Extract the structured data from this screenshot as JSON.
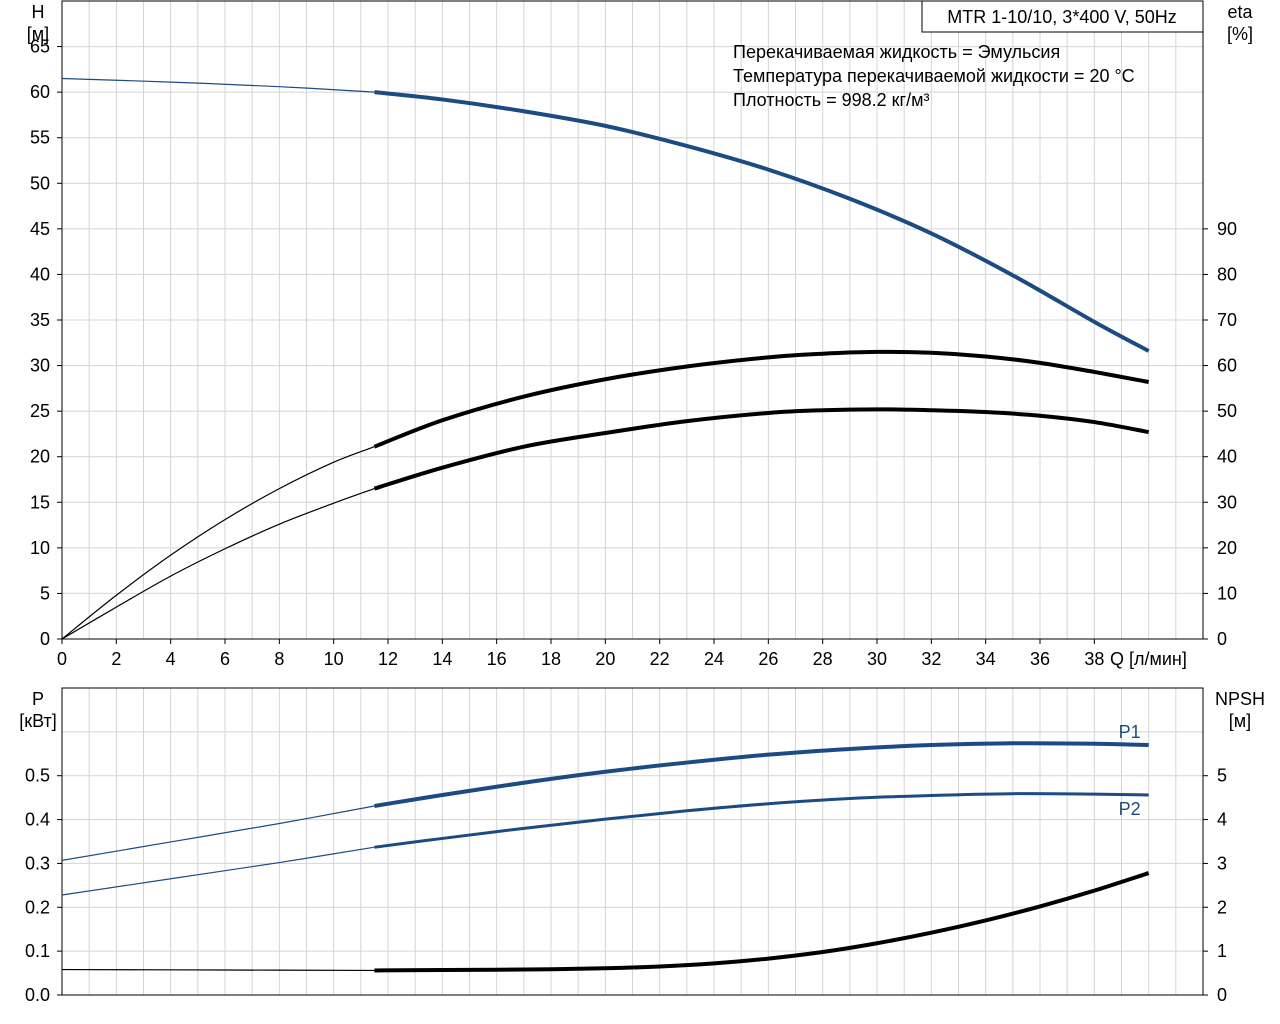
{
  "chart_data": [
    {
      "type": "line",
      "name": "performance",
      "title": "MTR 1-10/10, 3*400 V, 50Hz",
      "notes": [
        "Перекачиваемая жидкость = Эмульсия",
        "Температура перекачиваемой жидкости = 20 °C",
        "Плотность = 998.2 кг/м³"
      ],
      "xlabel": "Q [л/мин]",
      "ylabel_left": [
        "H",
        "[м]"
      ],
      "ylabel_right": [
        "eta",
        "[%]"
      ],
      "xlim": [
        0,
        42
      ],
      "ylim_left": [
        0,
        70
      ],
      "ylim_right": [
        0,
        140
      ],
      "x_ticks": [
        0,
        2,
        4,
        6,
        8,
        10,
        12,
        14,
        16,
        18,
        20,
        22,
        24,
        26,
        28,
        30,
        32,
        34,
        36,
        38
      ],
      "y_ticks_left": [
        0,
        5,
        10,
        15,
        20,
        25,
        30,
        35,
        40,
        45,
        50,
        55,
        60,
        65
      ],
      "y_ticks_right": [
        0,
        10,
        20,
        30,
        40,
        50,
        60,
        70,
        80,
        90
      ],
      "grid": true,
      "series": [
        {
          "axis": "left",
          "color": "#1b4b82",
          "x": [
            0,
            4,
            8,
            11.5,
            14,
            17,
            20,
            23,
            26,
            29,
            32,
            35,
            38,
            40
          ],
          "y": [
            61.5,
            61.1,
            60.6,
            60.0,
            59.2,
            57.9,
            56.3,
            54.1,
            51.5,
            48.3,
            44.5,
            39.9,
            34.8,
            31.6
          ]
        },
        {
          "axis": "right",
          "color": "#000000",
          "x": [
            0,
            2,
            4,
            6,
            8,
            10,
            11.5,
            14,
            17,
            20,
            23,
            26,
            28,
            30,
            32,
            34,
            36,
            38,
            40
          ],
          "y": [
            0,
            9.6,
            18.4,
            26.2,
            33.0,
            38.8,
            42.2,
            48.0,
            53.2,
            57.0,
            59.8,
            61.8,
            62.6,
            63.0,
            62.8,
            62.0,
            60.6,
            58.6,
            56.4
          ]
        },
        {
          "axis": "right",
          "color": "#000000",
          "x": [
            0,
            2,
            4,
            6,
            8,
            10,
            11.5,
            14,
            17,
            20,
            23,
            26,
            28,
            30,
            32,
            34,
            36,
            38,
            40
          ],
          "y": [
            0,
            7.0,
            13.8,
            19.8,
            25.2,
            29.8,
            33.0,
            37.6,
            42.2,
            45.2,
            47.8,
            49.6,
            50.2,
            50.4,
            50.2,
            49.8,
            49.0,
            47.6,
            45.4
          ]
        }
      ]
    },
    {
      "type": "line",
      "name": "power-npsh",
      "ylabel_left": [
        "P",
        "[кВт]"
      ],
      "ylabel_right": [
        "NPSH",
        "[м]"
      ],
      "xlim": [
        0,
        42
      ],
      "ylim_left": [
        0,
        0.7
      ],
      "ylim_right": [
        0,
        7
      ],
      "y_ticks_left": [
        0.0,
        0.1,
        0.2,
        0.3,
        0.4,
        0.5
      ],
      "y_ticks_right": [
        0,
        1,
        2,
        3,
        4,
        5
      ],
      "grid": true,
      "series": [
        {
          "name": "P1",
          "axis": "left",
          "color": "#1b4b82",
          "x": [
            0,
            4,
            8,
            11.5,
            14,
            17,
            20,
            23,
            26,
            29,
            32,
            35,
            38,
            40
          ],
          "y": [
            0.307,
            0.349,
            0.391,
            0.431,
            0.456,
            0.484,
            0.509,
            0.53,
            0.548,
            0.561,
            0.57,
            0.574,
            0.573,
            0.57
          ]
        },
        {
          "name": "P2",
          "axis": "left",
          "color": "#1b4b82",
          "x": [
            0,
            4,
            8,
            11.5,
            14,
            17,
            20,
            23,
            26,
            29,
            32,
            35,
            38,
            40
          ],
          "y": [
            0.228,
            0.265,
            0.302,
            0.337,
            0.357,
            0.38,
            0.401,
            0.42,
            0.436,
            0.448,
            0.455,
            0.459,
            0.458,
            0.456
          ]
        },
        {
          "name": "",
          "axis": "right",
          "color": "#000000",
          "x": [
            0,
            6,
            11.5,
            14,
            17,
            20,
            22,
            24,
            26,
            28,
            30,
            32,
            34,
            36,
            38,
            40
          ],
          "y": [
            0.58,
            0.57,
            0.56,
            0.57,
            0.58,
            0.61,
            0.65,
            0.72,
            0.83,
            0.98,
            1.18,
            1.42,
            1.7,
            2.02,
            2.38,
            2.78
          ]
        }
      ]
    }
  ]
}
